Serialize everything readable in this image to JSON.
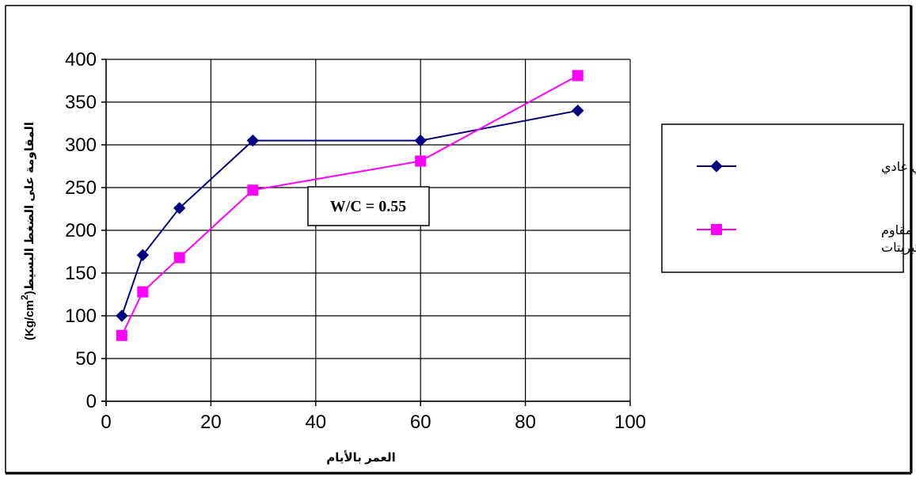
{
  "chart_data": {
    "type": "line",
    "xlabel": "العمر بالأيام",
    "ylabel_main": "المقاومة على الضغط البسيط",
    "ylabel_unit": "(Kg/cm",
    "ylabel_sup": "2",
    "ylabel_close": ")",
    "xlim": [
      0,
      100
    ],
    "ylim": [
      0,
      400
    ],
    "x_ticks": [
      0,
      20,
      40,
      60,
      80,
      100
    ],
    "y_ticks": [
      0,
      50,
      100,
      150,
      200,
      250,
      300,
      350,
      400
    ],
    "x_tick_labels": [
      "0",
      "20",
      "40",
      "60",
      "80",
      "100"
    ],
    "y_tick_labels": [
      "0",
      "50",
      "100",
      "150",
      "200",
      "250",
      "300",
      "350",
      "400"
    ],
    "grid": true,
    "legend_position": "right",
    "annotation": "W/C = 0.55",
    "series": [
      {
        "name": "اسمنت بورتلاندي عادي",
        "name_lines": [
          "اسمنت بورتلاندي عادي"
        ],
        "color": "#000080",
        "marker": "diamond",
        "x": [
          3,
          7,
          14,
          28,
          60,
          90
        ],
        "y": [
          100,
          171,
          226,
          305,
          305,
          340
        ]
      },
      {
        "name": "اسمنت بورتلاندي مقاوم للكبريتات",
        "name_lines": [
          "اسمنت بورتلاندي مقاوم",
          "للكبريتات"
        ],
        "color": "#FF00FF",
        "marker": "square",
        "x": [
          3,
          7,
          14,
          28,
          60,
          90
        ],
        "y": [
          77,
          128,
          168,
          247,
          281,
          381
        ]
      }
    ]
  }
}
